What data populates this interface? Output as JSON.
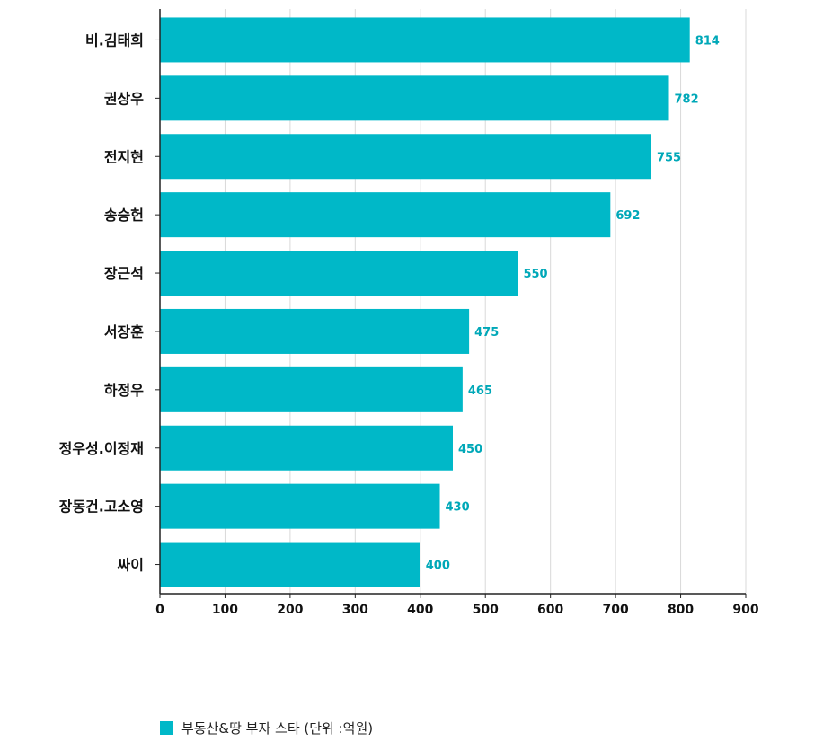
{
  "chart_data": {
    "type": "bar",
    "orientation": "horizontal",
    "categories": [
      "비.김태희",
      "권상우",
      "전지현",
      "송승헌",
      "장근석",
      "서장훈",
      "하정우",
      "정우성.이정재",
      "장동건.고소영",
      "싸이"
    ],
    "series": [
      {
        "name": "부동산&땅 부자 스타 (단위 :억원)",
        "values": [
          814,
          782,
          755,
          692,
          550,
          475,
          465,
          450,
          430,
          400
        ],
        "color": "#00b8c8"
      }
    ],
    "xlim": [
      0,
      900
    ],
    "xticks": [
      0,
      100,
      200,
      300,
      400,
      500,
      600,
      700,
      800,
      900
    ],
    "grid": "vertical",
    "data_labels": true,
    "legend_position": "bottom-left",
    "title": "",
    "xlabel": "",
    "ylabel": ""
  },
  "colors": {
    "bar": "#00b8c8",
    "data_label": "#00a8b8",
    "grid": "#d9d9d9",
    "axis": "#222222",
    "text": "#111111"
  }
}
